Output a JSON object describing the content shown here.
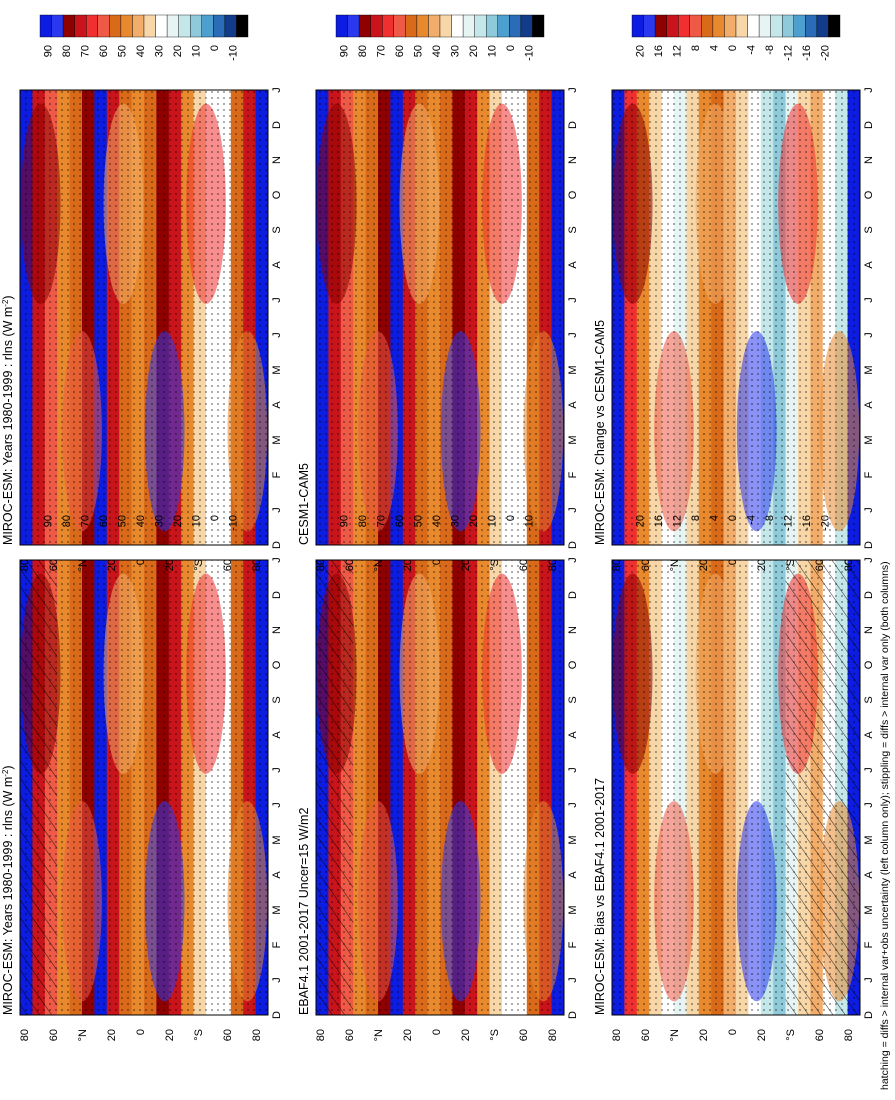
{
  "footnote": "hatching = diffs > internal var+obs uncertainty (left column only); stippling = diffs > internal var only (both columns)",
  "months": [
    "D",
    "J",
    "F",
    "M",
    "A",
    "M",
    "J",
    "J",
    "A",
    "S",
    "O",
    "N",
    "D",
    "J"
  ],
  "lat_ticks": [
    "80",
    "60",
    "°N",
    "20",
    "0",
    "20",
    "°S",
    "60",
    "80"
  ],
  "colorbar_abs": {
    "colors": [
      "#0c1ce0",
      "#2a39f0",
      "#8f0000",
      "#c8141a",
      "#f03030",
      "#ee5a45",
      "#d96a1a",
      "#e8892e",
      "#f2ad6a",
      "#f7d6a8",
      "#ffffff",
      "#e6f5f4",
      "#c4e8ea",
      "#8fcadb",
      "#4c9fcf",
      "#2a6cb7",
      "#123c8a",
      "#000000"
    ],
    "tick_labels": [
      "90",
      "80",
      "70",
      "60",
      "50",
      "40",
      "30",
      "20",
      "10",
      "0",
      "-10"
    ]
  },
  "colorbar_diff": {
    "colors": [
      "#0c1ce0",
      "#2a39f0",
      "#8f0000",
      "#c8141a",
      "#f03030",
      "#ee5a45",
      "#d96a1a",
      "#e8892e",
      "#f2ad6a",
      "#f7d6a8",
      "#ffffff",
      "#e6f5f4",
      "#c4e8ea",
      "#8fcadb",
      "#4c9fcf",
      "#2a6cb7",
      "#123c8a",
      "#000000"
    ],
    "tick_labels": [
      "20",
      "16",
      "12",
      "8",
      "4",
      "0",
      "-4",
      "-8",
      "-12",
      "-16",
      "-20"
    ]
  },
  "chart_data": [
    {
      "type": "heatmap",
      "title": "MIROC-ESM: Years 1980-1999 : rlns (W m",
      "title_sup": "-2",
      "title_end": ")",
      "colorbar": "abs",
      "hatch": "left",
      "stipple": true
    },
    {
      "type": "heatmap",
      "title": "MIROC-ESM: Years 1980-1999 : rlns (W m",
      "title_sup": "-2",
      "title_end": ")",
      "colorbar": "abs",
      "hatch": "none",
      "stipple": true
    },
    {
      "type": "heatmap",
      "title": "EBAF4.1 2001-2017 Uncer=15 W/m2",
      "title_sup": "",
      "title_end": "",
      "colorbar": "abs",
      "hatch": "bands",
      "stipple": true
    },
    {
      "type": "heatmap",
      "title": "CESM1-CAM5",
      "title_sup": "",
      "title_end": "",
      "colorbar": "abs",
      "hatch": "none",
      "stipple": true
    },
    {
      "type": "heatmap",
      "title": "MIROC-ESM: Bias vs EBAF4.1 2001-2017",
      "title_sup": "",
      "title_end": "",
      "colorbar": "diff",
      "hatch": "south",
      "stipple": true
    },
    {
      "type": "heatmap",
      "title": "MIROC-ESM: Change vs CESM1-CAM5",
      "title_sup": "",
      "title_end": "",
      "colorbar": "diff",
      "hatch": "none",
      "stipple": true
    }
  ]
}
